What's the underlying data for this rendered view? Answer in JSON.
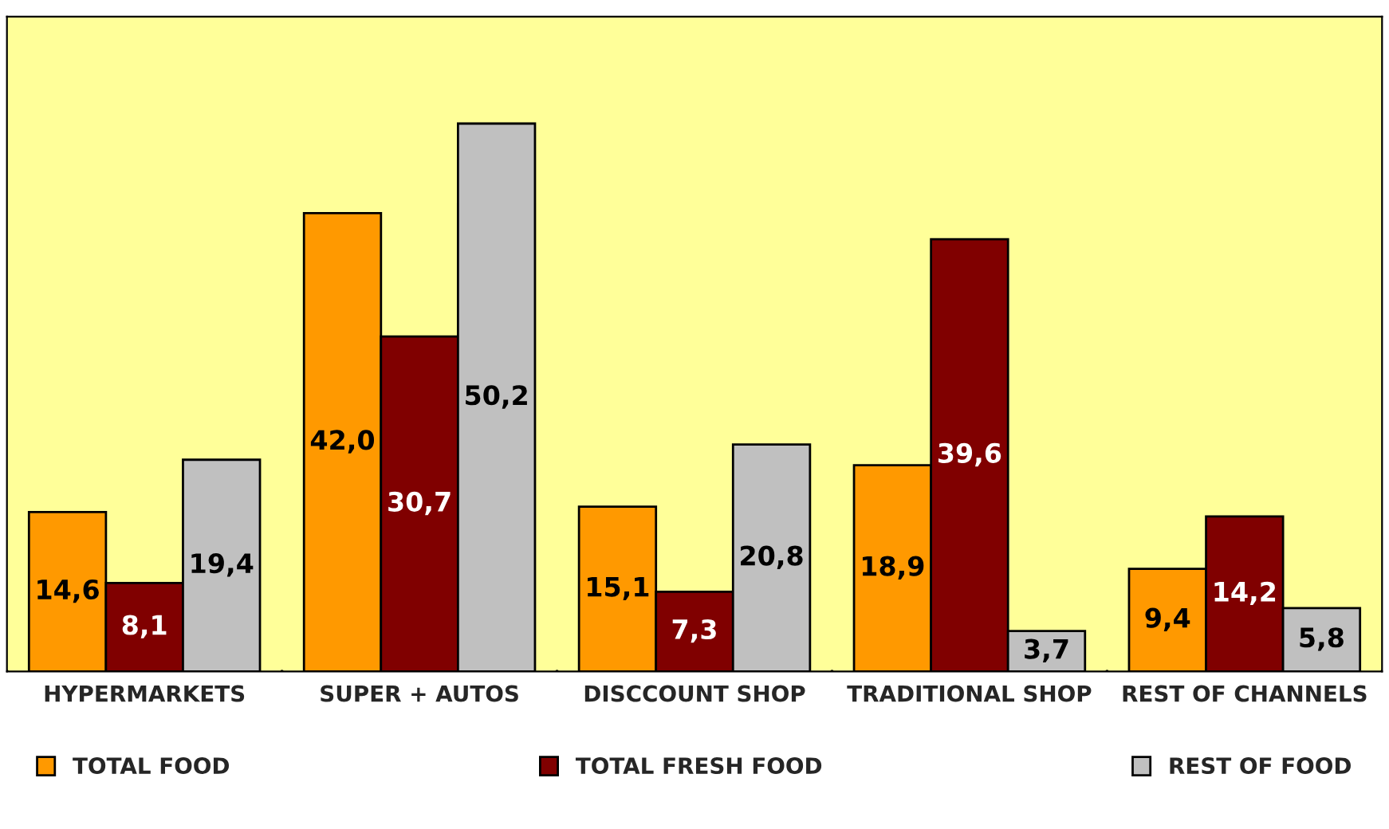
{
  "chart_data": {
    "type": "bar",
    "categories": [
      "HYPERMARKETS",
      "SUPER + AUTOS",
      "DISCCOUNT SHOP",
      "TRADITIONAL SHOP",
      "REST OF CHANNELS"
    ],
    "series": [
      {
        "name": "TOTAL FOOD",
        "color": "#ff9900",
        "values": [
          14.6,
          42.0,
          15.1,
          18.9,
          9.4
        ],
        "value_labels": [
          "14,6",
          "42,0",
          "15,1",
          "18,9",
          "9,4"
        ]
      },
      {
        "name": "TOTAL FRESH FOOD",
        "color": "#800000",
        "values": [
          8.1,
          30.7,
          7.3,
          39.6,
          14.2
        ],
        "value_labels": [
          "8,1",
          "30,7",
          "7,3",
          "39,6",
          "14,2"
        ]
      },
      {
        "name": "REST OF FOOD",
        "color": "#c0c0c0",
        "values": [
          19.4,
          50.2,
          20.8,
          3.7,
          5.8
        ],
        "value_labels": [
          "19,4",
          "50,2",
          "20,8",
          "3,7",
          "5,8"
        ]
      }
    ],
    "ylim": [
      0,
      60
    ],
    "legend": "bottom",
    "grid": false
  }
}
